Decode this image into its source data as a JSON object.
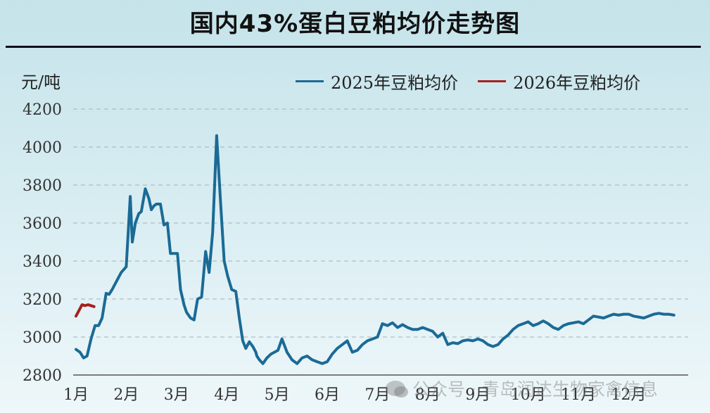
{
  "header": {
    "title": "国内43%蛋白豆粕均价走势图"
  },
  "axis": {
    "unit_label": "元/吨"
  },
  "legend": [
    {
      "label": "2025年豆粕均价",
      "color": "#1b6a96"
    },
    {
      "label": "2026年豆粕均价",
      "color": "#a81f1f"
    }
  ],
  "watermark": {
    "text": "公众号 · 青岛润达生物家禽信息"
  },
  "chart_data": {
    "type": "line",
    "title": "国内43%蛋白豆粕均价走势图",
    "xlabel": "",
    "ylabel": "元/吨",
    "ylim": [
      2800,
      4200
    ],
    "yticks": [
      4200,
      4000,
      3800,
      3600,
      3400,
      3200,
      3000,
      2800
    ],
    "grid": "horizontal dashed",
    "legend_position": "top-right",
    "categories": [
      "1月",
      "2月",
      "3月",
      "4月",
      "5月",
      "6月",
      "7月",
      "8月",
      "9月",
      "10月",
      "11月",
      "12月"
    ],
    "series": [
      {
        "name": "2025年豆粕均价",
        "color": "#1b6a96",
        "x": [
          1.0,
          1.08,
          1.15,
          1.22,
          1.3,
          1.38,
          1.45,
          1.52,
          1.6,
          1.66,
          1.72,
          1.8,
          1.9,
          2.0,
          2.08,
          2.12,
          2.18,
          2.25,
          2.3,
          2.38,
          2.45,
          2.5,
          2.55,
          2.6,
          2.68,
          2.75,
          2.82,
          2.88,
          2.95,
          3.02,
          3.08,
          3.15,
          3.2,
          3.28,
          3.35,
          3.42,
          3.5,
          3.58,
          3.65,
          3.72,
          3.8,
          3.88,
          3.95,
          4.02,
          4.1,
          4.18,
          4.25,
          4.32,
          4.38,
          4.45,
          4.52,
          4.58,
          4.6,
          4.65,
          4.72,
          4.8,
          4.88,
          4.95,
          5.02,
          5.1,
          5.2,
          5.3,
          5.4,
          5.5,
          5.6,
          5.7,
          5.8,
          5.9,
          6.0,
          6.1,
          6.2,
          6.3,
          6.4,
          6.5,
          6.6,
          6.7,
          6.8,
          6.9,
          7.0,
          7.1,
          7.2,
          7.3,
          7.4,
          7.5,
          7.6,
          7.7,
          7.8,
          7.9,
          8.0,
          8.1,
          8.2,
          8.3,
          8.4,
          8.5,
          8.6,
          8.7,
          8.8,
          8.9,
          9.0,
          9.1,
          9.2,
          9.3,
          9.4,
          9.5,
          9.6,
          9.7,
          9.8,
          9.9,
          10.0,
          10.1,
          10.2,
          10.3,
          10.4,
          10.5,
          10.6,
          10.7,
          10.8,
          10.9,
          11.0,
          11.1,
          11.2,
          11.3,
          11.4,
          11.5,
          11.6,
          11.7,
          11.8,
          11.9,
          12.0,
          12.1,
          12.2,
          12.3,
          12.4,
          12.5,
          12.6,
          12.7,
          12.8,
          12.9
        ],
        "values": [
          2935,
          2920,
          2890,
          2900,
          2990,
          3060,
          3060,
          3100,
          3230,
          3225,
          3250,
          3290,
          3340,
          3370,
          3740,
          3500,
          3600,
          3650,
          3660,
          3780,
          3730,
          3670,
          3690,
          3700,
          3700,
          3590,
          3600,
          3440,
          3440,
          3440,
          3250,
          3170,
          3130,
          3100,
          3090,
          3200,
          3210,
          3450,
          3340,
          3550,
          4060,
          3700,
          3400,
          3320,
          3250,
          3240,
          3100,
          2980,
          2940,
          2975,
          2950,
          2920,
          2900,
          2880,
          2860,
          2890,
          2910,
          2920,
          2930,
          2990,
          2920,
          2880,
          2860,
          2890,
          2900,
          2880,
          2870,
          2860,
          2870,
          2910,
          2940,
          2960,
          2980,
          2920,
          2930,
          2960,
          2980,
          2990,
          3000,
          3070,
          3060,
          3075,
          3050,
          3065,
          3050,
          3040,
          3040,
          3050,
          3040,
          3030,
          3000,
          3020,
          2960,
          2970,
          2965,
          2980,
          2985,
          2980,
          2990,
          2980,
          2960,
          2950,
          2960,
          2990,
          3010,
          3040,
          3060,
          3070,
          3080,
          3060,
          3070,
          3085,
          3070,
          3050,
          3040,
          3060,
          3070,
          3075,
          3080,
          3070,
          3090,
          3110,
          3105,
          3100,
          3110,
          3120,
          3115,
          3120,
          3120,
          3110,
          3105,
          3100,
          3110,
          3120,
          3125,
          3120,
          3120,
          3115
        ],
        "note": "values estimated from pixel trace"
      },
      {
        "name": "2026年豆粕均价",
        "color": "#a81f1f",
        "x": [
          1.0,
          1.06,
          1.12,
          1.18,
          1.24,
          1.3,
          1.36
        ],
        "values": [
          3110,
          3140,
          3170,
          3165,
          3170,
          3165,
          3160
        ]
      }
    ]
  }
}
